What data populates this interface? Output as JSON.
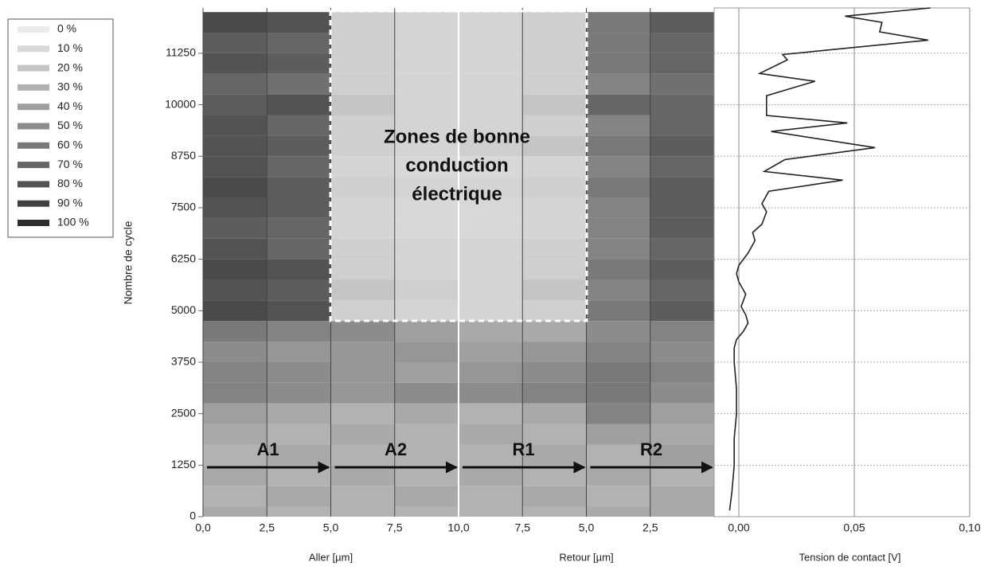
{
  "chart_data": [
    {
      "type": "heatmap",
      "ylabel": "Nombre de cycle",
      "ylim": [
        0,
        12350
      ],
      "yticks": [
        0,
        1250,
        2500,
        3750,
        5000,
        6250,
        7500,
        8750,
        10000,
        11250
      ],
      "y": [
        0,
        500,
        1000,
        1500,
        2000,
        2500,
        3000,
        3500,
        4000,
        4500,
        5000,
        5500,
        6000,
        6500,
        7000,
        7500,
        8000,
        8500,
        9000,
        9500,
        10000,
        10500,
        11000,
        11500,
        12000
      ],
      "panels": [
        {
          "xlabel": "Aller [µm]",
          "xlim": [
            0,
            10
          ],
          "xticks": [
            {
              "value": 0,
              "label": "0,0"
            },
            {
              "value": 2.5,
              "label": "2,5"
            },
            {
              "value": 5,
              "label": "5,0"
            },
            {
              "value": 7.5,
              "label": "7,5"
            },
            {
              "value": 10,
              "label": "10,0"
            }
          ],
          "x": [
            1.25,
            3.75,
            6.25,
            8.75
          ],
          "z": [
            [
              35,
              30,
              30,
              30
            ],
            [
              30,
              35,
              30,
              35
            ],
            [
              35,
              30,
              35,
              30
            ],
            [
              30,
              35,
              30,
              30
            ],
            [
              35,
              30,
              35,
              30
            ],
            [
              40,
              35,
              30,
              35
            ],
            [
              55,
              50,
              45,
              50
            ],
            [
              55,
              50,
              45,
              40
            ],
            [
              50,
              45,
              45,
              45
            ],
            [
              60,
              55,
              50,
              40
            ],
            [
              85,
              80,
              15,
              12
            ],
            [
              80,
              75,
              20,
              15
            ],
            [
              85,
              80,
              15,
              12
            ],
            [
              80,
              70,
              15,
              12
            ],
            [
              75,
              70,
              12,
              10
            ],
            [
              80,
              75,
              12,
              10
            ],
            [
              85,
              75,
              15,
              12
            ],
            [
              80,
              70,
              12,
              10
            ],
            [
              80,
              75,
              15,
              12
            ],
            [
              80,
              70,
              15,
              12
            ],
            [
              75,
              80,
              20,
              12
            ],
            [
              70,
              65,
              15,
              12
            ],
            [
              80,
              75,
              15,
              12
            ],
            [
              75,
              70,
              15,
              12
            ],
            [
              85,
              80,
              15,
              12
            ]
          ]
        },
        {
          "xlabel": "Retour [µm]",
          "xlim": [
            10,
            0
          ],
          "xticks": [
            {
              "value": 7.5,
              "label": "7,5"
            },
            {
              "value": 5,
              "label": "5,0"
            },
            {
              "value": 2.5,
              "label": "2,5"
            }
          ],
          "x": [
            8.75,
            6.25,
            3.75,
            1.25
          ],
          "z": [
            [
              30,
              30,
              35,
              35
            ],
            [
              30,
              35,
              30,
              35
            ],
            [
              35,
              30,
              35,
              30
            ],
            [
              30,
              35,
              30,
              40
            ],
            [
              35,
              30,
              40,
              35
            ],
            [
              30,
              35,
              55,
              40
            ],
            [
              50,
              55,
              60,
              50
            ],
            [
              45,
              50,
              60,
              55
            ],
            [
              40,
              45,
              55,
              50
            ],
            [
              35,
              35,
              50,
              55
            ],
            [
              12,
              15,
              60,
              75
            ],
            [
              12,
              20,
              55,
              70
            ],
            [
              12,
              15,
              60,
              75
            ],
            [
              12,
              15,
              55,
              70
            ],
            [
              10,
              12,
              55,
              75
            ],
            [
              10,
              12,
              55,
              75
            ],
            [
              12,
              15,
              60,
              75
            ],
            [
              10,
              12,
              55,
              70
            ],
            [
              15,
              20,
              60,
              75
            ],
            [
              12,
              15,
              55,
              70
            ],
            [
              12,
              20,
              70,
              70
            ],
            [
              12,
              15,
              55,
              65
            ],
            [
              12,
              15,
              60,
              70
            ],
            [
              12,
              15,
              60,
              70
            ],
            [
              12,
              15,
              60,
              75
            ]
          ]
        }
      ],
      "legend": {
        "labels": [
          "0 %",
          "10 %",
          "20 %",
          "30 %",
          "40 %",
          "50 %",
          "60 %",
          "70 %",
          "80 %",
          "90 %",
          "100 %"
        ],
        "values": [
          0,
          10,
          20,
          30,
          40,
          50,
          60,
          70,
          80,
          90,
          100
        ]
      },
      "annotation": [
        "Zones de bonne",
        "conduction",
        "électrique"
      ],
      "arrows": [
        "A1",
        "A2",
        "R1",
        "R2"
      ]
    },
    {
      "type": "line",
      "xlabel": "Tension de contact [V]",
      "xlim": [
        -0.0107,
        0.1
      ],
      "xticks": [
        {
          "value": 0,
          "label": "0,00"
        },
        {
          "value": 0.05,
          "label": "0,05"
        },
        {
          "value": 0.1,
          "label": "0,10"
        }
      ],
      "ylim": [
        0,
        12350
      ],
      "color": "#222222",
      "y": [
        150,
        600,
        1250,
        1900,
        2500,
        3100,
        3750,
        4100,
        4300,
        4500,
        4700,
        4900,
        5100,
        5400,
        5700,
        5900,
        6100,
        6400,
        6700,
        6900,
        7100,
        7400,
        7600,
        7900,
        8170,
        8380,
        8670,
        8960,
        9350,
        9560,
        9740,
        10220,
        10570,
        10760,
        11090,
        11220,
        11570,
        11770,
        12000,
        12150,
        12350
      ],
      "values": [
        -0.004,
        -0.003,
        -0.002,
        -0.002,
        -0.001,
        -0.001,
        -0.002,
        -0.002,
        -0.001,
        0.002,
        0.004,
        0.003,
        0.001,
        0.003,
        0.0,
        -0.001,
        0.0,
        0.004,
        0.007,
        0.006,
        0.01,
        0.012,
        0.01,
        0.013,
        0.045,
        0.011,
        0.02,
        0.059,
        0.014,
        0.047,
        0.012,
        0.012,
        0.033,
        0.009,
        0.021,
        0.019,
        0.082,
        0.061,
        0.062,
        0.046,
        0.083
      ]
    }
  ]
}
